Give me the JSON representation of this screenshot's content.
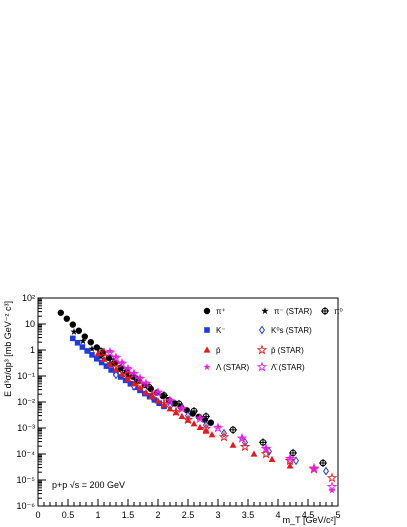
{
  "chart_data": {
    "type": "scatter",
    "xlabel": "m_T [GeV/c²]",
    "ylabel": "E d³σ/dp³ [mb GeV⁻² c³]",
    "xlim": [
      0,
      5
    ],
    "ylim": [
      1e-06,
      100
    ],
    "yscale": "log",
    "x_ticks": [
      "0",
      "0.5",
      "1",
      "1.5",
      "2",
      "2.5",
      "3",
      "3.5",
      "4",
      "4.5",
      "5"
    ],
    "y_ticks": [
      "10⁻⁶",
      "10⁻⁵",
      "10⁻⁴",
      "10⁻³",
      "10⁻²",
      "10⁻¹",
      "1",
      "10",
      "10²"
    ],
    "annotation": "p+p √s = 200 GeV",
    "legend_position": "top-right",
    "series": [
      {
        "name": "π⁺",
        "marker": "circle",
        "color": "#000000",
        "x": [
          0.38,
          0.48,
          0.58,
          0.68,
          0.78,
          0.88,
          0.98,
          1.08,
          1.18,
          1.28,
          1.38,
          1.48,
          1.58,
          1.68,
          1.78,
          1.88,
          1.98,
          2.08,
          2.18,
          2.28,
          2.38,
          2.48,
          2.58,
          2.68,
          2.78,
          2.88
        ],
        "y": [
          27,
          16,
          9.5,
          5.5,
          3.3,
          2.0,
          1.25,
          0.78,
          0.5,
          0.32,
          0.21,
          0.14,
          0.095,
          0.065,
          0.045,
          0.032,
          0.023,
          0.017,
          0.012,
          0.0088,
          0.0065,
          0.0048,
          0.0036,
          0.0027,
          0.0021,
          0.0016
        ]
      },
      {
        "name": "π⁻ (STAR)",
        "marker": "star",
        "color": "#000000",
        "x": [
          0.6,
          0.75,
          0.9,
          1.05,
          1.2,
          1.35,
          1.5,
          1.65
        ],
        "y": [
          5.0,
          2.2,
          1.1,
          0.55,
          0.3,
          0.17,
          0.1,
          0.06
        ]
      },
      {
        "name": "π⁰",
        "marker": "cross-circle",
        "color": "#000000",
        "x": [
          1.05,
          1.25,
          1.45,
          1.65,
          1.85,
          2.1,
          2.35,
          2.6,
          2.8,
          3.25,
          3.75,
          4.25,
          4.75
        ],
        "y": [
          0.9,
          0.35,
          0.16,
          0.075,
          0.038,
          0.018,
          0.0085,
          0.0045,
          0.0028,
          0.00085,
          0.00028,
          0.00011,
          4.5e-05
        ]
      },
      {
        "name": "K⁻",
        "marker": "square",
        "color": "#1f3be0",
        "x": [
          0.58,
          0.66,
          0.74,
          0.82,
          0.9,
          0.98,
          1.06,
          1.14,
          1.22,
          1.3,
          1.38,
          1.46,
          1.54,
          1.62,
          1.7,
          1.78,
          1.86,
          1.94,
          2.02,
          2.1
        ],
        "y": [
          2.8,
          1.9,
          1.3,
          0.92,
          0.65,
          0.46,
          0.33,
          0.24,
          0.17,
          0.125,
          0.092,
          0.068,
          0.05,
          0.037,
          0.028,
          0.021,
          0.016,
          0.012,
          0.009,
          0.0068
        ]
      },
      {
        "name": "K⁰s (STAR)",
        "marker": "open-diamond",
        "color": "#1f3be0",
        "x": [
          1.3,
          1.6,
          1.9,
          2.2,
          2.5,
          2.8,
          3.1,
          3.45,
          3.85,
          4.3,
          4.8
        ],
        "y": [
          0.11,
          0.04,
          0.016,
          0.0068,
          0.003,
          0.0013,
          0.00062,
          0.00028,
          0.000125,
          5.5e-05,
          2.2e-05
        ]
      },
      {
        "name": "p̄",
        "marker": "triangle",
        "color": "#e8191c",
        "x": [
          1.0,
          1.1,
          1.2,
          1.3,
          1.4,
          1.5,
          1.6,
          1.7,
          1.8,
          1.9,
          2.0,
          2.1,
          2.2,
          2.3,
          2.4,
          2.5,
          2.6,
          2.7,
          2.8,
          2.9,
          3.25,
          3.6,
          3.9,
          4.2
        ],
        "y": [
          0.72,
          0.44,
          0.28,
          0.18,
          0.115,
          0.075,
          0.05,
          0.034,
          0.023,
          0.016,
          0.011,
          0.0078,
          0.0055,
          0.0039,
          0.0028,
          0.002,
          0.00145,
          0.00105,
          0.00076,
          0.00055,
          0.00022,
          0.0001,
          6.2e-05,
          3.5e-05
        ]
      },
      {
        "name": "p̄ (STAR)",
        "marker": "open-star",
        "color": "#e8191c",
        "x": [
          1.1,
          1.3,
          1.5,
          1.7,
          1.9,
          2.1,
          2.3,
          2.5,
          2.8,
          3.1,
          3.45,
          3.8,
          4.2,
          4.6,
          4.9
        ],
        "y": [
          0.8,
          0.3,
          0.11,
          0.045,
          0.019,
          0.0085,
          0.0042,
          0.0021,
          0.00095,
          0.00045,
          0.00019,
          0.0001,
          5.5e-05,
          2.8e-05,
          1.2e-05
        ]
      },
      {
        "name": "Λ (STAR)",
        "marker": "star",
        "color": "#e61ee6",
        "x": [
          1.2,
          1.3,
          1.4,
          1.5,
          1.6,
          1.7,
          1.8,
          2.0,
          2.2,
          2.4,
          2.7,
          3.0,
          3.4,
          3.8,
          4.2,
          4.6,
          4.9
        ],
        "y": [
          0.9,
          0.55,
          0.33,
          0.2,
          0.13,
          0.085,
          0.055,
          0.025,
          0.012,
          0.006,
          0.0025,
          0.0011,
          0.00042,
          0.00017,
          7e-05,
          2.8e-05,
          4e-06
        ]
      },
      {
        "name": "Λ̄ (STAR)",
        "marker": "open-star",
        "color": "#e61ee6",
        "x": [
          1.2,
          1.3,
          1.4,
          1.5,
          1.6,
          1.7,
          1.8,
          2.0,
          2.2,
          2.4,
          2.7,
          3.0,
          3.4,
          3.8,
          4.2,
          4.6,
          4.9
        ],
        "y": [
          0.8,
          0.5,
          0.3,
          0.18,
          0.12,
          0.078,
          0.05,
          0.023,
          0.011,
          0.0055,
          0.0023,
          0.001,
          0.0004,
          0.00016,
          6.5e-05,
          2.6e-05,
          5.5e-06
        ]
      }
    ]
  }
}
